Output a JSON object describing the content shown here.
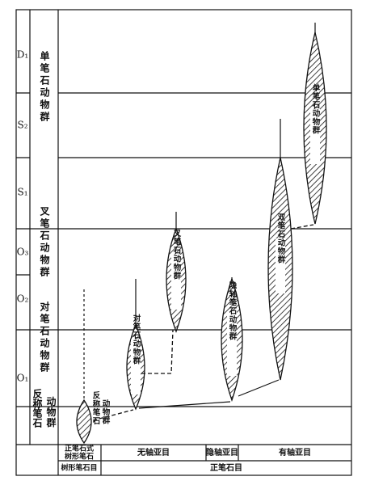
{
  "strata": [
    "D₁",
    "S₂",
    "S₁",
    "O₃",
    "O₂",
    "O₁"
  ],
  "faunas": [
    "单笔石动物群",
    "叉笔石动物群",
    "对笔石动物群",
    "反称笔石",
    "动物群"
  ],
  "lineages": [
    "反称笔石",
    "动物群",
    "对笔石动物群",
    "叉笔石动物群",
    "隐轴笔石动物群",
    "双笔石动物群",
    "单笔石动物群"
  ],
  "suborders": [
    "正笔石式",
    "树形笔石",
    "无轴亚目",
    "隐轴亚目",
    "有轴亚目"
  ],
  "orders": [
    "树形笔石目",
    "正笔石目"
  ]
}
